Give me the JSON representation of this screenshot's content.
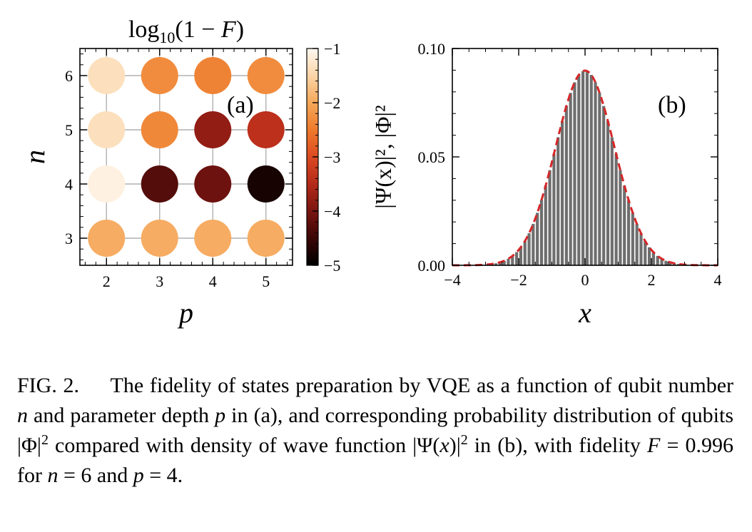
{
  "chart_data": [
    {
      "type": "heatmap",
      "panel_label": "(a)",
      "title": "log₁₀(1 − F)",
      "title_parts": {
        "pre": "log",
        "sub": "10",
        "post": "(1 − ",
        "var": "F",
        "close": ")"
      },
      "xlabel": "p",
      "ylabel": "n",
      "x": [
        2,
        3,
        4,
        5
      ],
      "y": [
        3,
        4,
        5,
        6
      ],
      "xlim": [
        1.5,
        5.5
      ],
      "ylim": [
        2.5,
        6.5
      ],
      "xticks": [
        "2",
        "3",
        "4",
        "5"
      ],
      "yticks": [
        "3",
        "4",
        "5",
        "6"
      ],
      "grid": true,
      "values": [
        [
          -1.95,
          -1.95,
          -1.95,
          -1.95
        ],
        [
          -1.1,
          -4.3,
          -4.1,
          -4.8
        ],
        [
          -1.35,
          -2.35,
          -3.8,
          -3.4
        ],
        [
          -1.35,
          -2.3,
          -2.4,
          -2.3
        ]
      ],
      "colorbar": {
        "range": [
          -5,
          -1
        ],
        "ticks": [
          "−1",
          "−2",
          "−3",
          "−4",
          "−5"
        ],
        "tick_values": [
          -1,
          -2,
          -3,
          -4,
          -5
        ],
        "colormap": "Oranges-reversed",
        "stops": [
          "#000000",
          "#3a0706",
          "#7a1510",
          "#b42a1a",
          "#dc4a22",
          "#ee7a2c",
          "#f5a85a",
          "#fbd5a7",
          "#fff8f0"
        ]
      }
    },
    {
      "type": "bar",
      "panel_label": "(b)",
      "xlabel": "x",
      "ylabel": "|Ψ(x)|², |Φ|²",
      "xlim": [
        -4,
        4
      ],
      "ylim": [
        0,
        0.1
      ],
      "xticks": [
        "−4",
        "−2",
        "0",
        "2",
        "4"
      ],
      "xtick_values": [
        -4,
        -2,
        0,
        2,
        4
      ],
      "yticks": [
        "0.00",
        "0.05",
        "0.10"
      ],
      "ytick_values": [
        0,
        0.05,
        0.1
      ],
      "bar_color": "#6e6e6e",
      "line_color": "#d62728",
      "line_style": "dashed",
      "gaussian": {
        "amplitude": 0.0898,
        "mu": 0,
        "sigma": 0.888
      }
    }
  ],
  "caption": {
    "fig_label": "FIG. 2.",
    "segments": [
      {
        "t": "The fidelity of states preparation by VQE as a function of qubit number ",
        "i": false
      },
      {
        "t": "n",
        "i": true
      },
      {
        "t": " and parameter depth ",
        "i": false
      },
      {
        "t": "p",
        "i": true
      },
      {
        "t": " in (a), and corresponding probability distribution of qubits |Φ|",
        "i": false
      },
      {
        "t": "2",
        "sup": true
      },
      {
        "t": " compared with density of wave function |Ψ(",
        "i": false
      },
      {
        "t": "x",
        "i": true
      },
      {
        "t": ")|",
        "i": false
      },
      {
        "t": "2",
        "sup": true
      },
      {
        "t": " in (b), with fidelity ",
        "i": false
      },
      {
        "t": "F",
        "i": true
      },
      {
        "t": " = 0.996 for ",
        "i": false
      },
      {
        "t": "n",
        "i": true
      },
      {
        "t": " = 6 and ",
        "i": false
      },
      {
        "t": "p",
        "i": true
      },
      {
        "t": " = 4.",
        "i": false
      }
    ]
  }
}
